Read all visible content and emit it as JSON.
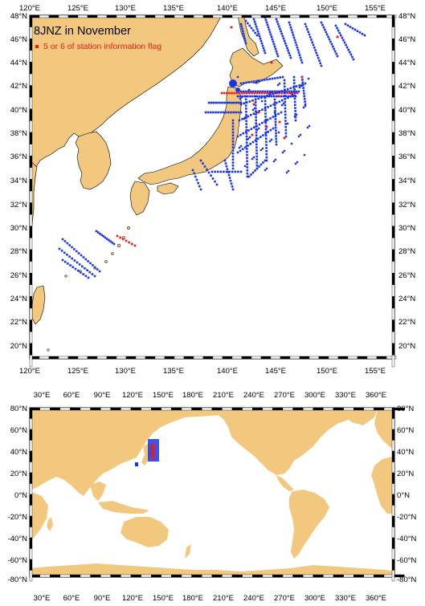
{
  "colors": {
    "land": "#f2c87e",
    "ocean": "#ffffff",
    "station": "#1a35e6",
    "flagged": "#e81c1c",
    "frame": "#000000"
  },
  "top_map": {
    "title": "8JNZ in November",
    "legend_label": "5 or 6 of station information flag",
    "lon_labels": [
      "120°E",
      "125°E",
      "130°E",
      "135°E",
      "140°E",
      "145°E",
      "150°E",
      "155°E"
    ],
    "lat_labels": [
      "48°N",
      "46°N",
      "44°N",
      "42°N",
      "40°N",
      "38°N",
      "36°N",
      "34°N",
      "32°N",
      "30°N",
      "28°N",
      "26°N",
      "24°N",
      "22°N",
      "20°N"
    ]
  },
  "bottom_map": {
    "lon_labels": [
      "30°E",
      "60°E",
      "90°E",
      "120°E",
      "150°E",
      "180°E",
      "210°E",
      "240°E",
      "270°E",
      "300°E",
      "330°E",
      "360°E"
    ],
    "lat_labels": [
      "80°N",
      "60°N",
      "40°N",
      "20°N",
      "0°N",
      "-20°N",
      "-40°N",
      "-60°N",
      "-80°N"
    ]
  }
}
